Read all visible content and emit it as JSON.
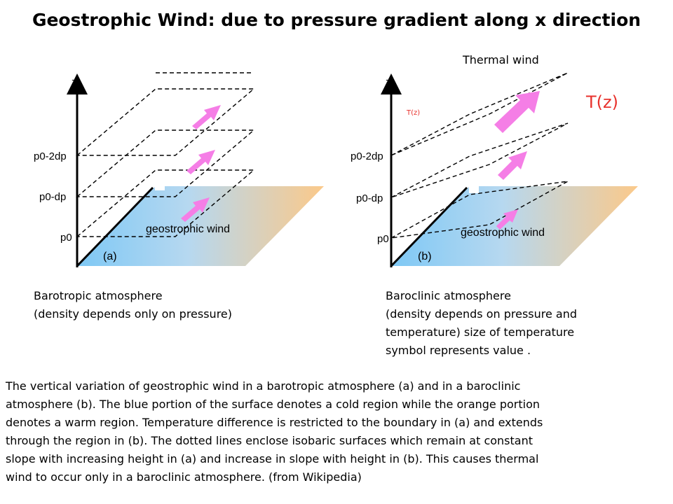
{
  "title": "Geostrophic Wind: due to pressure gradient along x direction",
  "thermal_wind_label": "Thermal wind",
  "temperature_symbol_large": "T(z)",
  "temperature_symbol_small": "T(z)",
  "panel_a": {
    "axis_z": "z",
    "levels": [
      "p0-2dp",
      "p0-dp",
      "p0"
    ],
    "wind_label": "geostrophic wind",
    "panel_label": "(a)",
    "caption": [
      "Barotropic atmosphere",
      "(density depends only on pressure)"
    ]
  },
  "panel_b": {
    "axis_z": "z",
    "levels": [
      "p0-2dp",
      "p0-dp",
      "p0"
    ],
    "wind_label": "geostrophic wind",
    "panel_label": "(b)",
    "caption": [
      "Baroclinic atmosphere",
      "(density depends on pressure and",
      "temperature) size of temperature",
      "symbol represents value ."
    ]
  },
  "description": [
    "The vertical variation of geostrophic wind in a barotropic atmosphere (a) and in a baroclinic",
    "atmosphere (b). The blue portion of the surface denotes a cold region while the orange portion",
    "denotes a warm region. Temperature difference is restricted to the boundary in (a) and extends",
    "through the region in (b). The dotted lines enclose isobaric surfaces which remain at constant",
    "slope with increasing height in (a) and increase in slope with height in (b). This causes thermal",
    "wind to occur only in a baroclinic atmosphere. (from Wikipedia)"
  ],
  "colors": {
    "cold_surface": "#7ec8f5",
    "warm_surface": "#fbc98a",
    "wind_arrow": "#f57ee6",
    "temperature_text": "#e8322d"
  }
}
